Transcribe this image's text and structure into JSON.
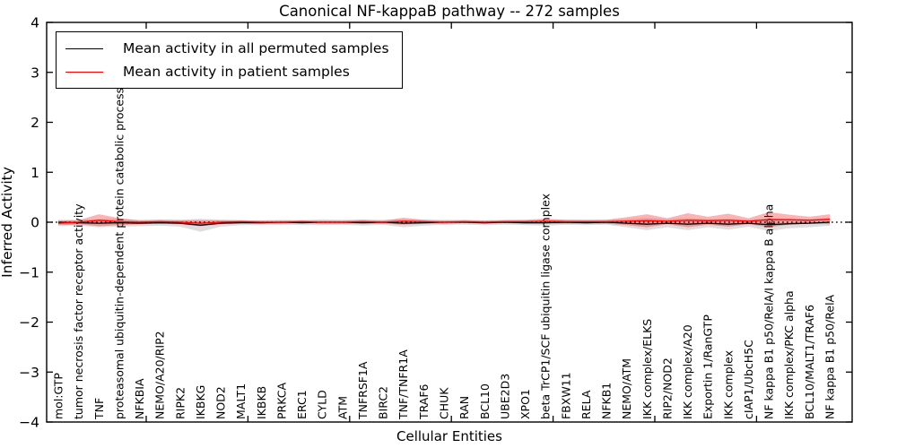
{
  "title": "Canonical NF-kappaB pathway -- 272 samples",
  "legend": [
    {
      "label": "Mean activity in all permuted samples",
      "color": "#000000"
    },
    {
      "label": "Mean activity in patient samples",
      "color": "#ff0000"
    }
  ],
  "colors": {
    "permuted_line": "#000000",
    "patient_line": "#ff0000",
    "permuted_band": "rgba(0,0,0,0.13)",
    "patient_band": "rgba(255,0,0,0.30)",
    "axis": "#000000"
  },
  "chart_data": {
    "type": "line",
    "title": "Canonical NF-kappaB pathway -- 272 samples",
    "xlabel": "Cellular Entities",
    "ylabel": "Inferred Activity",
    "ylim": [
      -4,
      4
    ],
    "yticks": [
      4,
      3,
      2,
      1,
      0,
      -1,
      -2,
      -3,
      -4
    ],
    "grid": false,
    "zero_line": "dotted",
    "legend_position": "upper left",
    "categories": [
      "mol:GTP",
      "tumor necrosis factor receptor activity",
      "TNF",
      "proteasomal ubiquitin-dependent protein catabolic process",
      "NFKBIA",
      "NEMO/A20/RIP2",
      "RIPK2",
      "IKBKG",
      "NOD2",
      "MALT1",
      "IKBKB",
      "PRKCA",
      "ERC1",
      "CYLD",
      "ATM",
      "TNFRSF1A",
      "BIRC2",
      "TNF/TNFR1A",
      "TRAF6",
      "CHUK",
      "RAN",
      "BCL10",
      "UBE2D3",
      "XPO1",
      "beta TrCP1/SCF ubiquitin ligase complex",
      "FBXW11",
      "RELA",
      "NFKB1",
      "NEMO/ATM",
      "IKK complex/ELKS",
      "RIP2/NOD2",
      "IKK complex/A20",
      "Exportin 1/RanGTP",
      "IKK complex",
      "cIAP1/UbcH5C",
      "NF kappa B1 p50/RelA/I kappa B alpha",
      "IKK complex/PKC alpha",
      "BCL10/MALT1/TRAF6",
      "NF kappa B1 p50/RelA"
    ],
    "series": [
      {
        "name": "Mean activity in all permuted samples",
        "color": "#000000",
        "values": [
          0,
          -0.01,
          -0.02,
          -0.01,
          -0.02,
          -0.01,
          -0.02,
          -0.06,
          -0.02,
          -0.01,
          -0.01,
          0,
          -0.01,
          0,
          0,
          -0.01,
          0,
          -0.02,
          -0.01,
          0,
          0,
          -0.01,
          0,
          -0.01,
          -0.01,
          0,
          -0.01,
          0,
          -0.02,
          -0.04,
          -0.02,
          -0.04,
          -0.02,
          -0.04,
          -0.02,
          -0.05,
          -0.03,
          -0.02,
          0
        ],
        "band_halfwidth": [
          0.05,
          0.06,
          0.08,
          0.08,
          0.06,
          0.06,
          0.07,
          0.13,
          0.07,
          0.05,
          0.05,
          0.05,
          0.05,
          0.06,
          0.05,
          0.06,
          0.05,
          0.08,
          0.06,
          0.05,
          0.05,
          0.05,
          0.05,
          0.05,
          0.06,
          0.05,
          0.05,
          0.05,
          0.08,
          0.12,
          0.08,
          0.12,
          0.08,
          0.11,
          0.07,
          0.13,
          0.09,
          0.08,
          0.07
        ]
      },
      {
        "name": "Mean activity in patient samples",
        "color": "#ff0000",
        "values": [
          -0.02,
          0,
          0.04,
          0.01,
          0,
          0.01,
          0,
          -0.02,
          0,
          0.01,
          0,
          0,
          0.01,
          0,
          0,
          0.01,
          0,
          0.02,
          0.01,
          0,
          0.01,
          0,
          0.01,
          0.01,
          0.02,
          0.01,
          0.01,
          0.01,
          0.02,
          0.03,
          0.02,
          0.04,
          0.03,
          0.04,
          0.02,
          0.05,
          0.05,
          0.04,
          0.06
        ],
        "band_halfwidth": [
          0.05,
          0.04,
          0.12,
          0.07,
          0.04,
          0.04,
          0.04,
          0.06,
          0.04,
          0.03,
          0.03,
          0.03,
          0.03,
          0.03,
          0.03,
          0.04,
          0.03,
          0.07,
          0.04,
          0.03,
          0.03,
          0.03,
          0.03,
          0.04,
          0.05,
          0.04,
          0.04,
          0.04,
          0.08,
          0.13,
          0.06,
          0.14,
          0.08,
          0.13,
          0.06,
          0.15,
          0.1,
          0.07,
          0.1
        ]
      }
    ]
  }
}
